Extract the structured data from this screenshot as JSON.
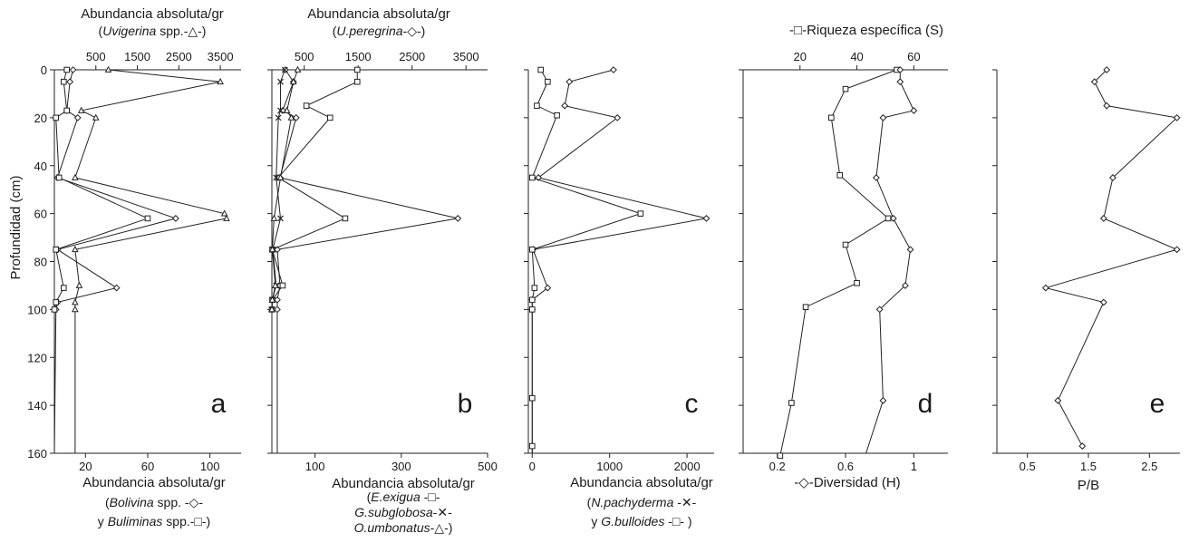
{
  "y_axis": {
    "label": "Profundidad (cm)",
    "range": [
      0,
      160
    ],
    "ticks": [
      0,
      20,
      40,
      60,
      80,
      100,
      120,
      140,
      160
    ]
  },
  "chart_data": [
    {
      "id": "a",
      "type": "line",
      "panel_letter": "a",
      "orientation": "depth-profile",
      "top_label": "Abundancia absoluta/gr",
      "top_sublabel_parts": [
        "(",
        "Uvigerina",
        " spp.-△-)"
      ],
      "top_axis": {
        "range": [
          -500,
          4000
        ],
        "ticks": [
          500,
          1500,
          2500,
          3500
        ],
        "tick_labels": [
          "500",
          "1500",
          "2500",
          "3500"
        ]
      },
      "bottom_label": "Abundancia absoluta/gr",
      "bottom_sublabel_lines": [
        [
          [
            "(",
            false
          ],
          [
            "Bolivina",
            true
          ],
          [
            " spp. -◇-",
            false
          ]
        ],
        [
          [
            "y ",
            false
          ],
          [
            "Buliminas",
            true
          ],
          [
            " spp.-□-)",
            false
          ]
        ]
      ],
      "bottom_axis": {
        "range": [
          0,
          120
        ],
        "ticks": [
          20,
          60,
          100
        ],
        "tick_labels": [
          "20",
          "60",
          "100"
        ]
      },
      "series": [
        {
          "name": "Uvigerina spp.",
          "marker": "triangle",
          "axis": "top",
          "depth": [
            0,
            5,
            17,
            20,
            45,
            60,
            62,
            75,
            90,
            97,
            100,
            160
          ],
          "values": [
            800,
            3500,
            150,
            500,
            0,
            3600,
            3650,
            0,
            100,
            0,
            0,
            0
          ]
        },
        {
          "name": "Bolivina spp.",
          "marker": "diamond",
          "axis": "bottom",
          "depth": [
            0,
            5,
            17,
            20,
            45,
            62,
            75,
            91,
            97,
            100,
            160
          ],
          "values": [
            12,
            10,
            8,
            15,
            2,
            78,
            2,
            40,
            2,
            1,
            0
          ]
        },
        {
          "name": "Buliminas spp.",
          "marker": "square",
          "axis": "bottom",
          "depth": [
            0,
            5,
            17,
            20,
            45,
            62,
            75,
            91,
            97,
            100,
            160
          ],
          "values": [
            8,
            6,
            8,
            1,
            3,
            60,
            1,
            6,
            1,
            0,
            0
          ]
        }
      ]
    },
    {
      "id": "b",
      "type": "line",
      "panel_letter": "b",
      "orientation": "depth-profile",
      "top_label": "Abundancia absoluta/gr",
      "top_sublabel_parts": [
        "(",
        "U.peregrina",
        "-◇-)"
      ],
      "top_axis": {
        "range": [
          -100,
          3900
        ],
        "ticks": [
          500,
          1500,
          2500,
          3500
        ],
        "tick_labels": [
          "500",
          "1500",
          "2500",
          "3500"
        ]
      },
      "bottom_label": "Abundancia absoluta/gr",
      "bottom_sublabel_lines": [
        [
          [
            "(",
            false
          ],
          [
            "E.exigua",
            true
          ],
          [
            " -□-",
            false
          ]
        ],
        [
          [
            "G.subglobosa",
            true
          ],
          [
            "-✕-",
            false
          ]
        ],
        [
          [
            "O.umbonatus",
            true
          ],
          [
            "-△-)",
            false
          ]
        ]
      ],
      "bottom_axis": {
        "range": [
          0,
          500
        ],
        "ticks": [
          100,
          300,
          500
        ],
        "tick_labels": [
          "100",
          "300",
          "500"
        ]
      },
      "series": [
        {
          "name": "U.peregrina",
          "marker": "diamond",
          "axis": "top",
          "depth": [
            0,
            5,
            17,
            20,
            45,
            62,
            75,
            90,
            96,
            100,
            160
          ],
          "values": [
            150,
            300,
            100,
            350,
            50,
            3350,
            0,
            50,
            0,
            0,
            0
          ]
        },
        {
          "name": "E.exigua",
          "marker": "square",
          "axis": "bottom",
          "depth": [
            0,
            5,
            15,
            20,
            45,
            62,
            75,
            90,
            96,
            100,
            160
          ],
          "values": [
            198,
            198,
            80,
            135,
            15,
            170,
            1,
            25,
            1,
            0,
            0
          ]
        },
        {
          "name": "G.subglobosa",
          "marker": "cross",
          "axis": "bottom",
          "depth": [
            0,
            5,
            17,
            20,
            45,
            62,
            75,
            90,
            96,
            100,
            160
          ],
          "values": [
            30,
            20,
            20,
            15,
            10,
            20,
            2,
            10,
            1,
            0,
            0
          ]
        },
        {
          "name": "O.umbonatus",
          "marker": "triangle",
          "axis": "bottom",
          "depth": [
            0,
            5,
            17,
            20,
            45,
            62,
            75,
            90,
            96,
            100,
            160
          ],
          "values": [
            60,
            50,
            35,
            45,
            20,
            5,
            1,
            8,
            1,
            0,
            0
          ]
        }
      ]
    },
    {
      "id": "c",
      "type": "line",
      "panel_letter": "c",
      "orientation": "depth-profile",
      "bottom_label": "Abundancia absoluta/gr",
      "bottom_sublabel_lines": [
        [
          [
            "(",
            false
          ],
          [
            "N.pachyderma",
            true
          ],
          [
            " -✕-",
            false
          ]
        ],
        [
          [
            "y ",
            false
          ],
          [
            "G.bulloides",
            true
          ],
          [
            " -□- )",
            false
          ]
        ]
      ],
      "bottom_axis": {
        "range": [
          -50,
          2350
        ],
        "ticks": [
          0,
          1000,
          2000
        ],
        "tick_labels": [
          "0",
          "1000",
          "2000"
        ]
      },
      "series": [
        {
          "name": "N.pachyderma",
          "marker": "diamond",
          "axis": "bottom",
          "depth": [
            0,
            5,
            15,
            20,
            45,
            62,
            75,
            91,
            96,
            100,
            160
          ],
          "values": [
            1050,
            480,
            420,
            1100,
            80,
            2250,
            10,
            200,
            0,
            0,
            0
          ]
        },
        {
          "name": "G.bulloides",
          "marker": "square",
          "axis": "bottom",
          "depth": [
            0,
            5,
            15,
            19,
            45,
            60,
            75,
            91,
            96,
            100,
            137,
            157,
            160
          ],
          "values": [
            110,
            200,
            60,
            320,
            0,
            1400,
            0,
            30,
            0,
            0,
            0,
            0,
            0
          ]
        }
      ]
    },
    {
      "id": "d",
      "type": "line",
      "panel_letter": "d",
      "orientation": "depth-profile",
      "top_label": "-□-Riqueza específica (S)",
      "top_axis": {
        "range": [
          0,
          72
        ],
        "ticks": [
          20,
          40,
          60
        ],
        "tick_labels": [
          "20",
          "40",
          "60"
        ]
      },
      "bottom_label": "-◇-Diversidad (H)",
      "bottom_axis": {
        "range": [
          0,
          1.2
        ],
        "ticks": [
          0.2,
          0.6,
          1
        ],
        "tick_labels": [
          "0.2",
          "0.6",
          "1"
        ]
      },
      "series": [
        {
          "name": "Riqueza específica (S)",
          "marker": "square",
          "axis": "top",
          "depth": [
            0,
            8,
            20,
            44,
            62,
            73,
            89,
            99,
            139,
            161
          ],
          "values": [
            54,
            36,
            31,
            34,
            51,
            36,
            40,
            22,
            17,
            13
          ]
        },
        {
          "name": "Diversidad (H)",
          "marker": "diamond",
          "axis": "bottom",
          "depth": [
            0,
            5,
            17,
            20,
            45,
            62,
            75,
            90,
            100,
            138,
            160
          ],
          "values": [
            0.92,
            0.92,
            1.0,
            0.82,
            0.78,
            0.88,
            0.98,
            0.95,
            0.8,
            0.82,
            0.72
          ]
        }
      ]
    },
    {
      "id": "e",
      "type": "line",
      "panel_letter": "e",
      "orientation": "depth-profile",
      "bottom_label": "P/B",
      "bottom_axis": {
        "range": [
          0,
          3
        ],
        "ticks": [
          0.5,
          1.5,
          2.5
        ],
        "tick_labels": [
          "0.5",
          "1.5",
          "2.5"
        ]
      },
      "series": [
        {
          "name": "P/B",
          "marker": "diamond",
          "axis": "bottom",
          "depth": [
            0,
            5,
            15,
            20,
            45,
            62,
            75,
            91,
            97,
            138,
            157
          ],
          "values": [
            1.8,
            1.6,
            1.8,
            2.95,
            1.9,
            1.75,
            2.95,
            0.8,
            1.75,
            1.0,
            1.4
          ]
        }
      ]
    }
  ]
}
